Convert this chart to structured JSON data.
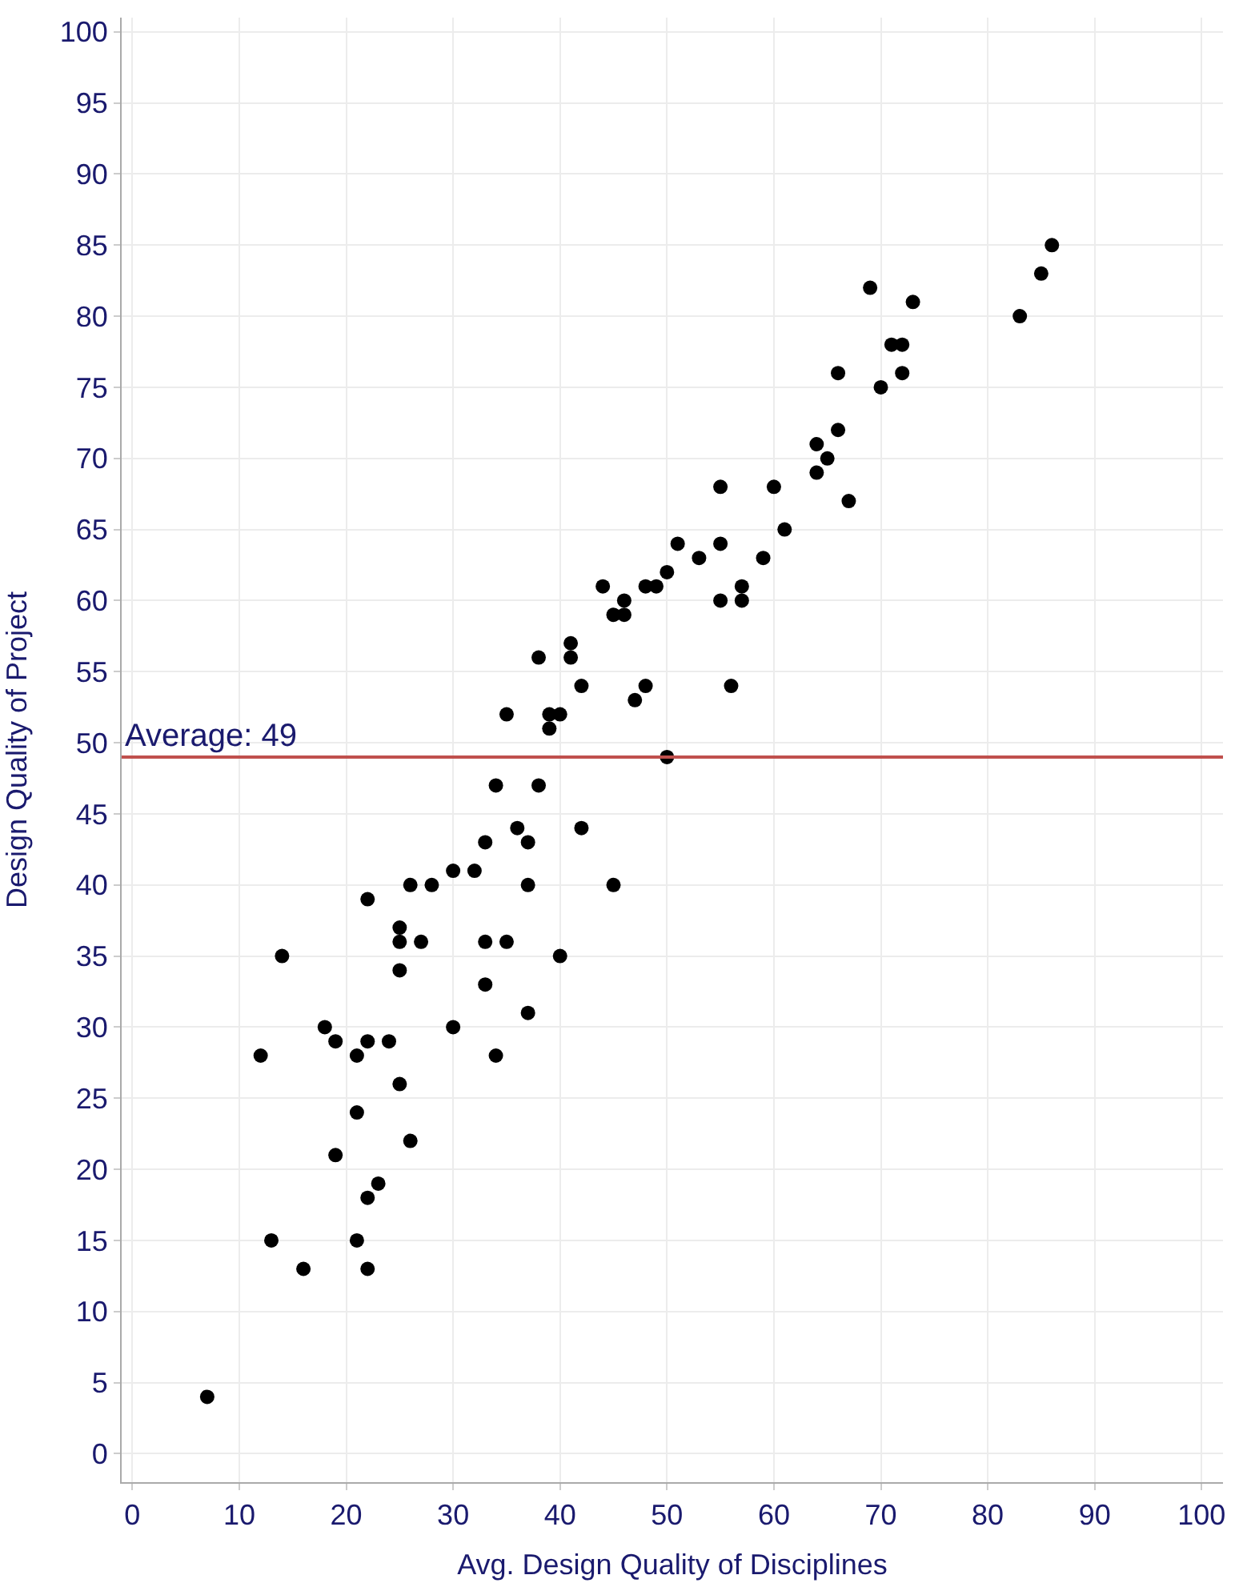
{
  "chart_data": {
    "type": "scatter",
    "xlabel": "Avg. Design Quality of Disciplines",
    "ylabel": "Design Quality of Project",
    "x": [
      7,
      12,
      13,
      14,
      16,
      18,
      19,
      19,
      21,
      21,
      21,
      22,
      22,
      22,
      22,
      23,
      24,
      25,
      25,
      25,
      25,
      26,
      26,
      27,
      28,
      30,
      30,
      32,
      33,
      33,
      33,
      34,
      34,
      35,
      35,
      36,
      37,
      37,
      37,
      38,
      38,
      39,
      39,
      40,
      40,
      41,
      41,
      42,
      42,
      44,
      45,
      45,
      46,
      46,
      47,
      48,
      48,
      49,
      50,
      50,
      51,
      53,
      55,
      55,
      55,
      56,
      57,
      57,
      59,
      60,
      61,
      64,
      64,
      65,
      66,
      66,
      67,
      69,
      70,
      71,
      72,
      72,
      73,
      83,
      85,
      86
    ],
    "values": [
      4,
      28,
      15,
      35,
      13,
      30,
      29,
      21,
      28,
      24,
      15,
      39,
      29,
      18,
      13,
      19,
      29,
      37,
      36,
      34,
      26,
      40,
      22,
      36,
      40,
      41,
      30,
      41,
      43,
      36,
      33,
      47,
      28,
      52,
      36,
      44,
      43,
      40,
      31,
      56,
      47,
      52,
      51,
      52,
      35,
      57,
      56,
      54,
      44,
      61,
      59,
      40,
      60,
      59,
      53,
      61,
      54,
      61,
      62,
      49,
      64,
      63,
      68,
      64,
      60,
      54,
      61,
      60,
      63,
      68,
      65,
      71,
      69,
      70,
      76,
      72,
      67,
      82,
      75,
      78,
      78,
      76,
      81,
      80,
      83,
      85
    ],
    "color": "#000000",
    "marker": "circle",
    "xlim": [
      -1,
      102
    ],
    "ylim": [
      -2,
      101
    ],
    "xticks": [
      0,
      10,
      20,
      30,
      40,
      50,
      60,
      70,
      80,
      90,
      100
    ],
    "yticks": [
      0,
      5,
      10,
      15,
      20,
      25,
      30,
      35,
      40,
      45,
      50,
      55,
      60,
      65,
      70,
      75,
      80,
      85,
      90,
      95,
      100
    ],
    "grid": true,
    "ref_lines": [
      {
        "axis": "y",
        "value": 49,
        "label": "Average: 49",
        "color": "#c0504d"
      }
    ]
  }
}
